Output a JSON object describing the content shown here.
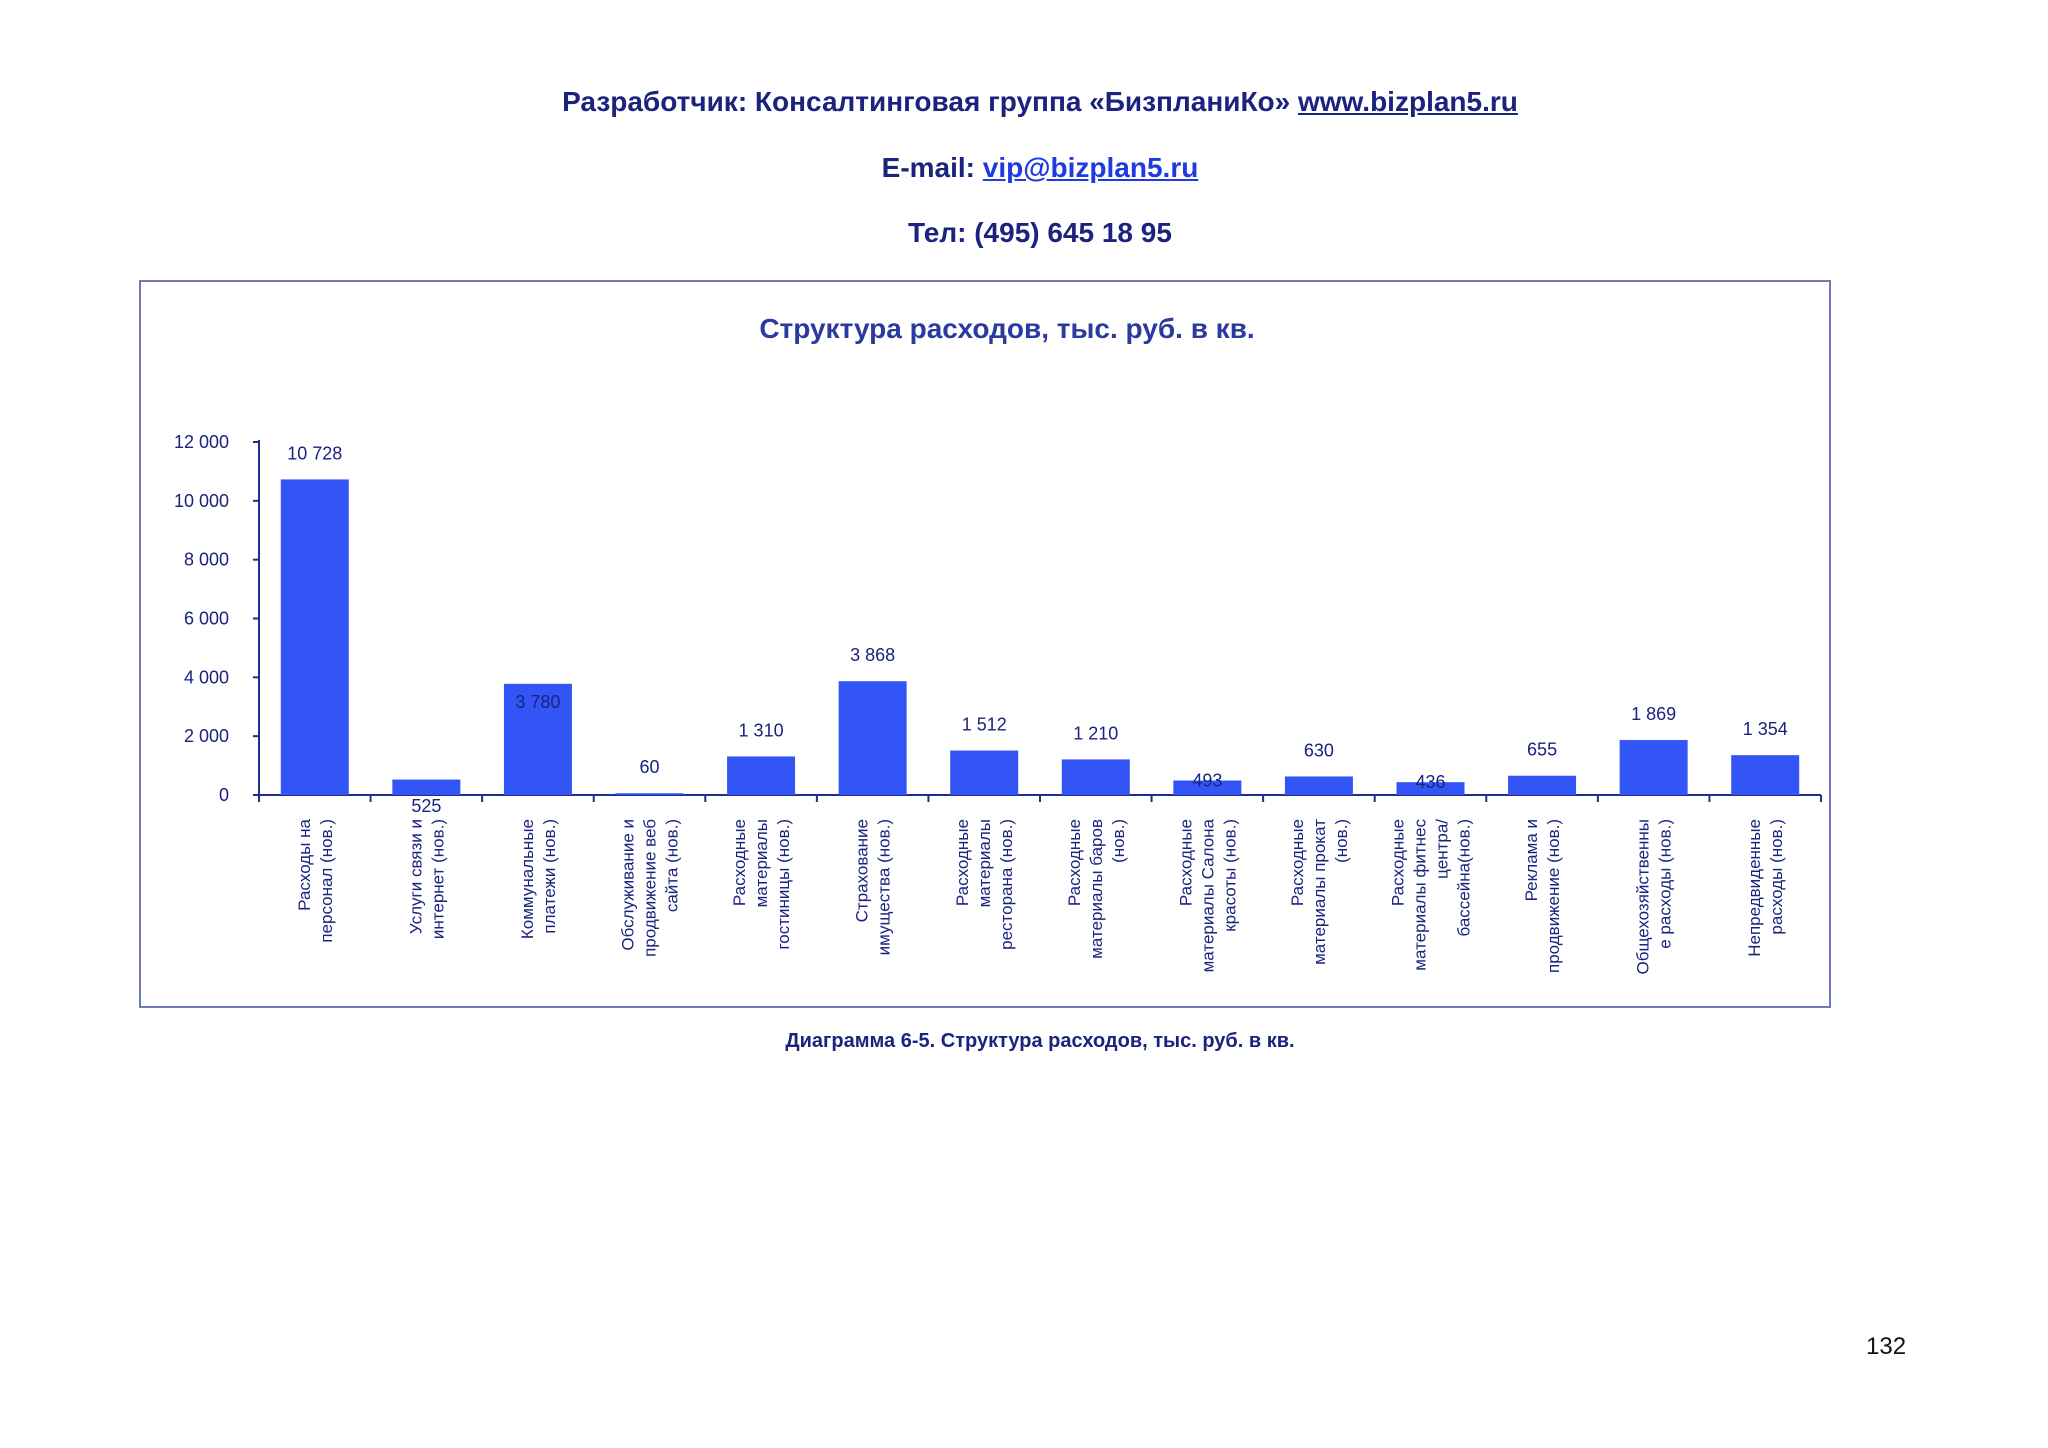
{
  "header": {
    "developer_label": "Разработчик: Консалтинговая группа «БизпланиКо»",
    "site_link": "www.bizplan5.ru",
    "email_label": "E-mail:",
    "email_link": "vip@bizplan5.ru",
    "phone": "Тел: (495) 645 18 95"
  },
  "caption": "Диаграмма 6-5. Структура расходов, тыс. руб. в кв.",
  "page_number": "132",
  "colors": {
    "bar": "#3355f5",
    "text": "#1a237e",
    "axis": "#1f2f8f"
  },
  "chart_data": {
    "type": "bar",
    "title": "Структура расходов, тыс. руб. в кв.",
    "xlabel": "",
    "ylabel": "",
    "ylim": [
      0,
      12000
    ],
    "yticks": [
      0,
      2000,
      4000,
      6000,
      8000,
      10000,
      12000
    ],
    "ytick_labels": [
      "0",
      "2 000",
      "4 000",
      "6 000",
      "8 000",
      "10 000",
      "12 000"
    ],
    "grid": false,
    "categories": [
      [
        "Расходы на",
        "персонал (нов.)"
      ],
      [
        "Услуги связи и",
        "интернет (нов.)"
      ],
      [
        "Коммунальные",
        "платежи (нов.)"
      ],
      [
        "Обслуживание и",
        "продвижение веб",
        "сайта (нов.)"
      ],
      [
        "Расходные",
        "материалы",
        "гостиницы (нов.)"
      ],
      [
        "Страхование",
        "имущества (нов.)"
      ],
      [
        "Расходные",
        "материалы",
        "ресторана (нов.)"
      ],
      [
        "Расходные",
        "материалы баров",
        "(нов.)"
      ],
      [
        "Расходные",
        "материалы Салона",
        "красоты (нов.)"
      ],
      [
        "Расходные",
        "материалы прокат",
        "(нов.)"
      ],
      [
        "Расходные",
        "материалы фитнес",
        "центра/",
        "бассейна(нов.)"
      ],
      [
        "Реклама и",
        "продвижение (нов.)"
      ],
      [
        "Общехозяйственны",
        "е расходы (нов.)"
      ],
      [
        "Непредвиденные",
        "расходы (нов.)"
      ]
    ],
    "values": [
      10728,
      525,
      3780,
      60,
      1310,
      3868,
      1512,
      1210,
      493,
      630,
      436,
      655,
      1869,
      1354
    ],
    "value_labels": [
      "10 728",
      "525",
      "3 780",
      "60",
      "1 310",
      "3 868",
      "1 512",
      "1 210",
      "493",
      "630",
      "436",
      "655",
      "1 869",
      "1 354"
    ]
  }
}
